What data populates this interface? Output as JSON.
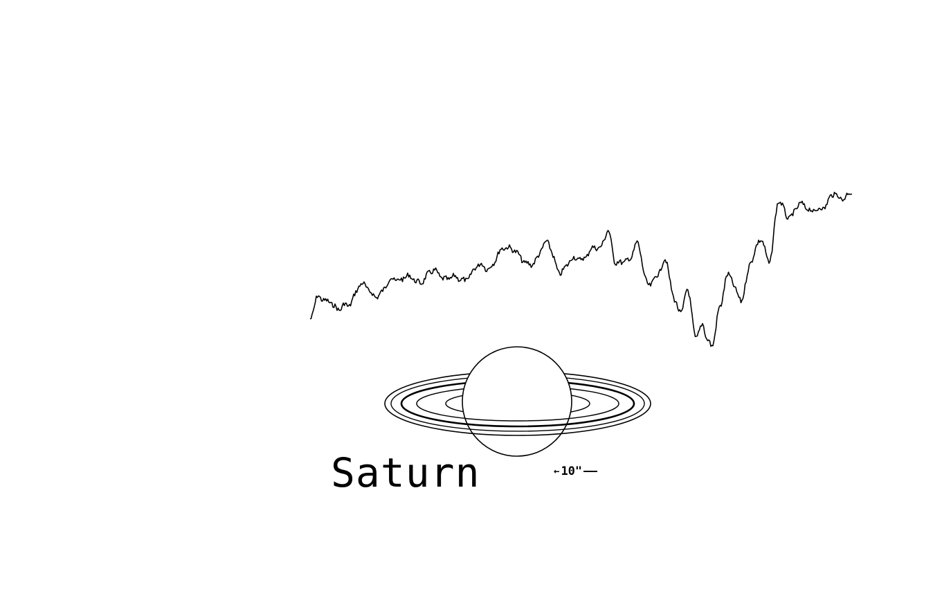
{
  "figure": {
    "label": "Saturn",
    "scale_label": "10\"",
    "scale_arrow": "←",
    "colors": {
      "background": "#ffffff",
      "ink": "#000000"
    },
    "icons": {
      "planet": "saturn-ringed-planet-drawing",
      "arrow": "left-arrow-icon"
    }
  }
}
